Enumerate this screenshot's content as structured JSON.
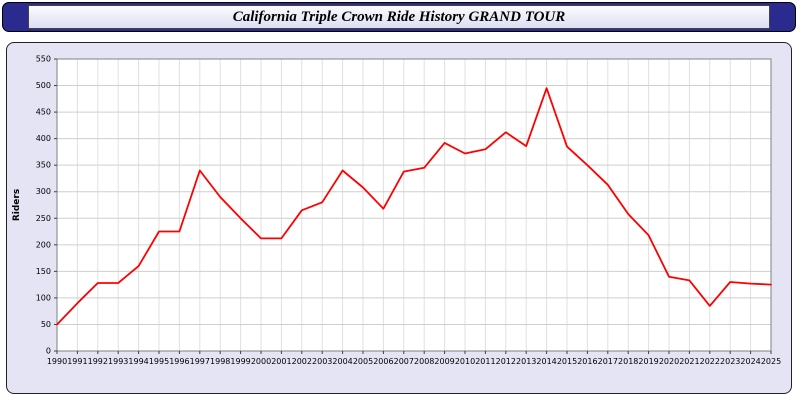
{
  "header": {
    "title": "California Triple Crown Ride History GRAND TOUR"
  },
  "chart_data": {
    "type": "line",
    "title": "California Triple Crown Ride History GRAND TOUR",
    "xlabel": "",
    "ylabel": "Riders",
    "ylim": [
      0,
      550
    ],
    "ytick_step": 50,
    "grid": true,
    "legend_position": "none",
    "line_color": "#ff0000",
    "x": [
      1990,
      1991,
      1992,
      1993,
      1994,
      1995,
      1996,
      1997,
      1998,
      1999,
      2000,
      2001,
      2002,
      2003,
      2004,
      2005,
      2006,
      2007,
      2008,
      2009,
      2010,
      2011,
      2012,
      2013,
      2014,
      2015,
      2016,
      2017,
      2018,
      2019,
      2020,
      2021,
      2022,
      2023,
      2024,
      2025
    ],
    "series": [
      {
        "name": "Riders",
        "values": [
          50,
          90,
          128,
          128,
          160,
          225,
          225,
          340,
          290,
          250,
          212,
          212,
          265,
          280,
          340,
          308,
          268,
          338,
          345,
          392,
          372,
          380,
          412,
          386,
          495,
          385,
          350,
          313,
          258,
          218,
          140,
          133,
          85,
          130,
          127,
          125
        ]
      }
    ]
  }
}
